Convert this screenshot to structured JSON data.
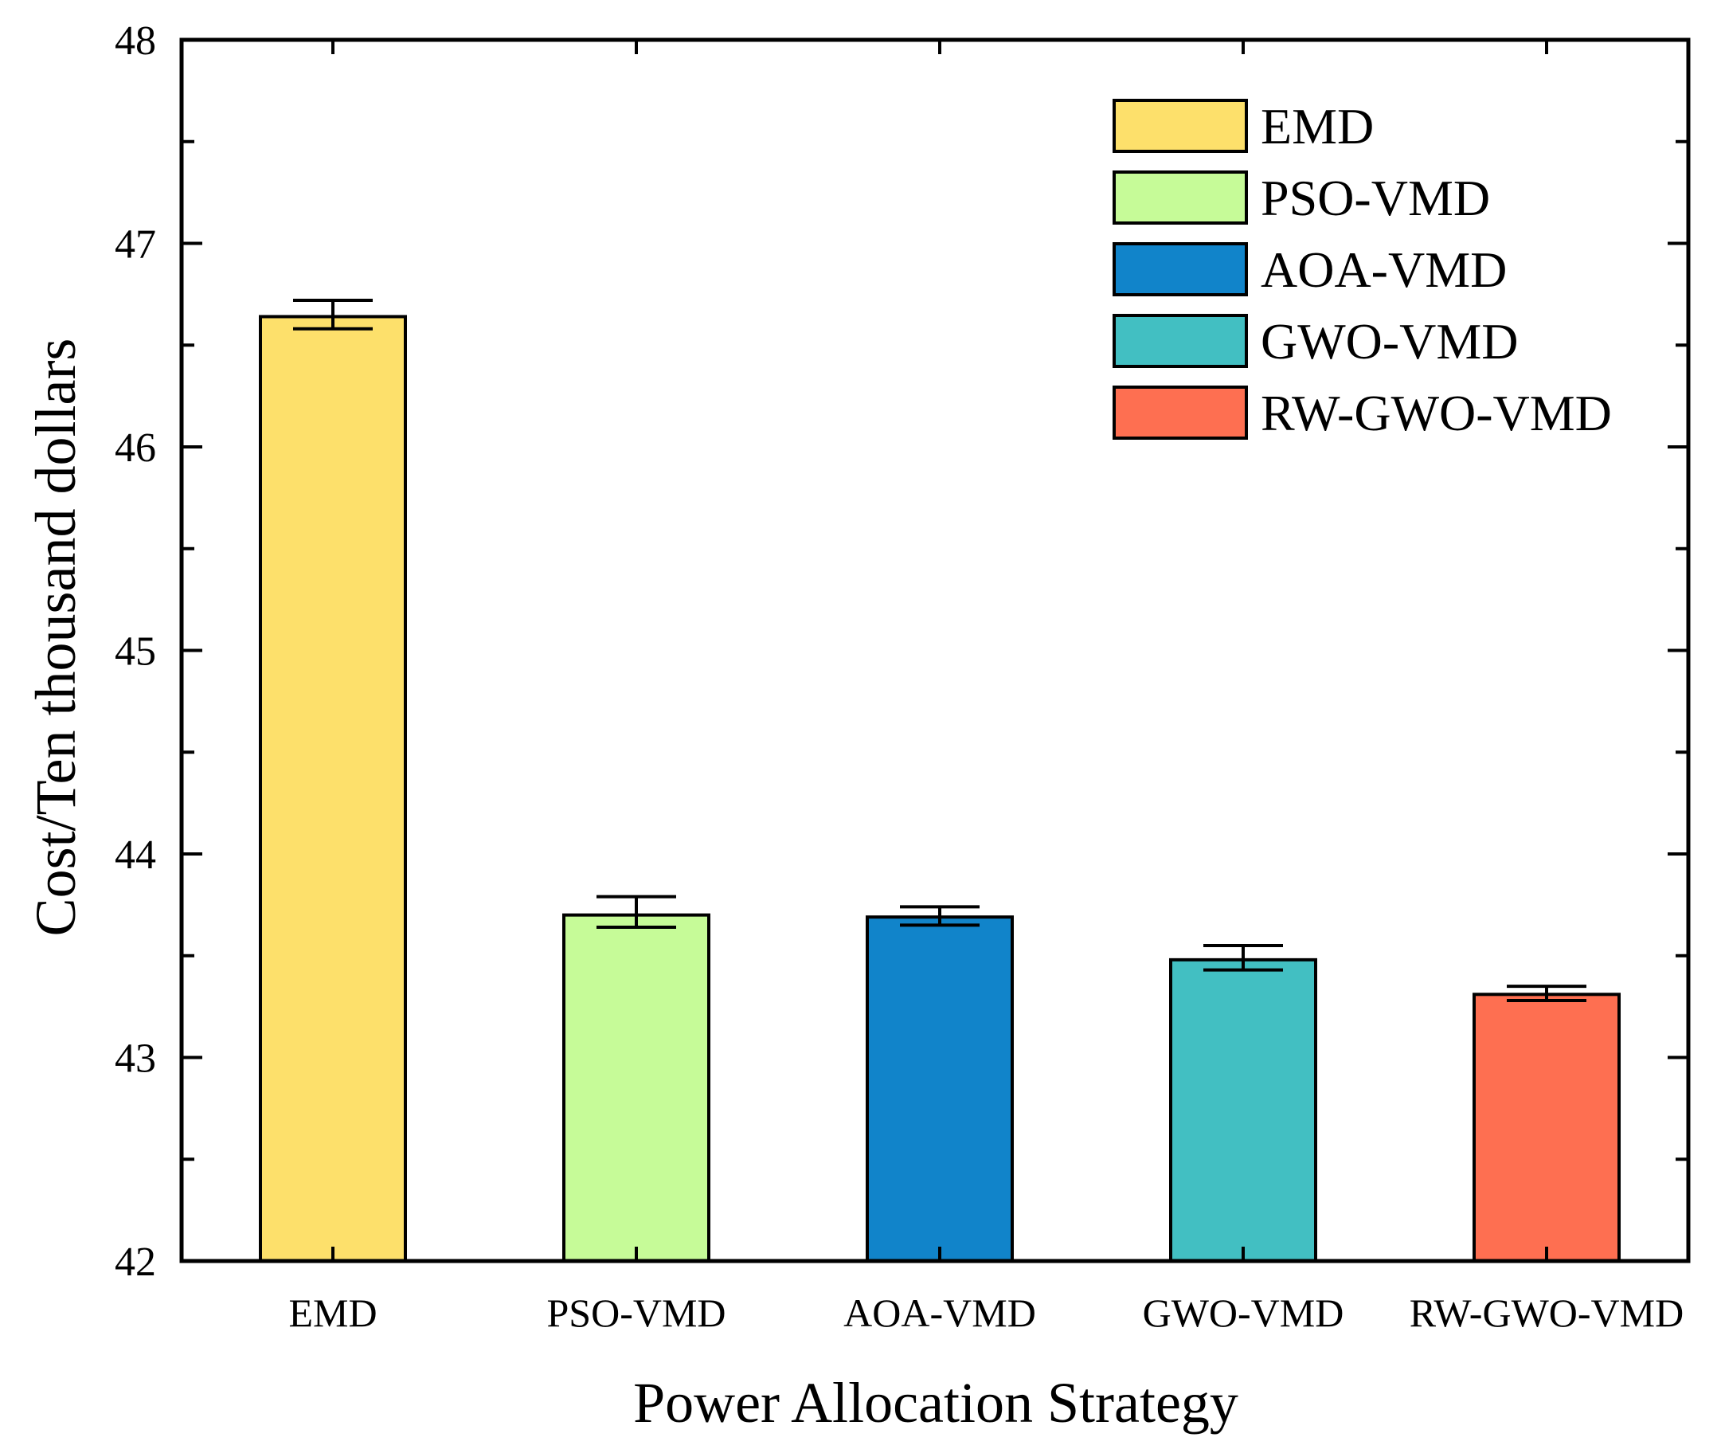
{
  "chart_data": {
    "type": "bar",
    "title": "",
    "xlabel": "Power Allocation Strategy",
    "ylabel": "Cost/Ten thousand dollars",
    "ylim": [
      42,
      48
    ],
    "yticks": [
      42,
      43,
      44,
      45,
      46,
      47,
      48
    ],
    "ytick_labels": [
      "42",
      "43",
      "44",
      "45",
      "46",
      "47",
      "48"
    ],
    "minor_tick_step": 0.5,
    "grid": false,
    "legend_position": "top-right",
    "categories": [
      "EMD",
      "PSO-VMD",
      "AOA-VMD",
      "GWO-VMD",
      "RW-GWO-VMD"
    ],
    "values": [
      46.64,
      43.7,
      43.69,
      43.48,
      43.31
    ],
    "error_low": [
      46.58,
      43.64,
      43.65,
      43.43,
      43.28
    ],
    "error_high": [
      46.72,
      43.79,
      43.74,
      43.55,
      43.35
    ],
    "colors": [
      "#FDE06B",
      "#C6FB98",
      "#1184CA",
      "#42BFC2",
      "#FE6F51"
    ],
    "legend": [
      "EMD",
      "PSO-VMD",
      "AOA-VMD",
      "GWO-VMD",
      "RW-GWO-VMD"
    ]
  }
}
